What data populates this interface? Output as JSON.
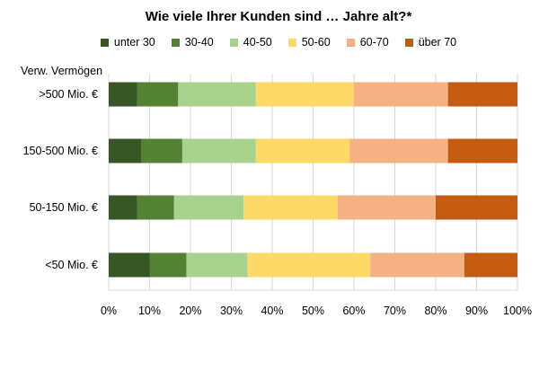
{
  "chart_data": {
    "type": "bar",
    "orientation": "horizontal",
    "stacked": true,
    "title": "Wie viele Ihrer Kunden sind … Jahre alt?*",
    "y_axis_header": "Verw. Vermögen",
    "categories": [
      ">500 Mio. €",
      "150-500 Mio. €",
      "50-150 Mio. €",
      "<50 Mio. €"
    ],
    "series": [
      {
        "name": "unter 30",
        "color": "#375623",
        "values": [
          7,
          8,
          7,
          10
        ]
      },
      {
        "name": "30-40",
        "color": "#548235",
        "values": [
          10,
          10,
          9,
          9
        ]
      },
      {
        "name": "40-50",
        "color": "#a9d18e",
        "values": [
          19,
          18,
          17,
          15
        ]
      },
      {
        "name": "50-60",
        "color": "#ffd966",
        "values": [
          24,
          23,
          23,
          30
        ]
      },
      {
        "name": "60-70",
        "color": "#f4b183",
        "values": [
          23,
          24,
          24,
          23
        ]
      },
      {
        "name": "über 70",
        "color": "#c55a11",
        "values": [
          17,
          17,
          20,
          13
        ]
      }
    ],
    "xlim": [
      0,
      100
    ],
    "x_ticks": [
      "0%",
      "10%",
      "20%",
      "30%",
      "40%",
      "50%",
      "60%",
      "70%",
      "80%",
      "90%",
      "100%"
    ],
    "grid": true,
    "legend_position": "top"
  }
}
